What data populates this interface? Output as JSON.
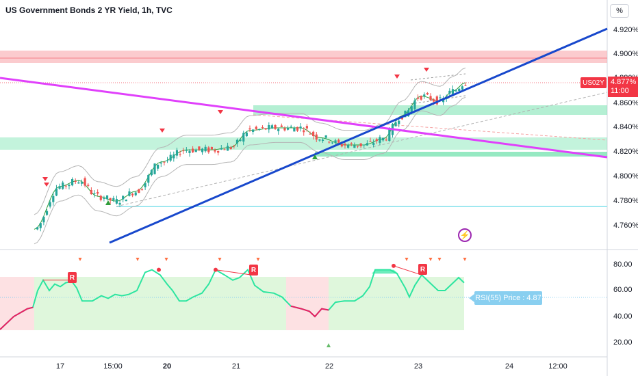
{
  "header": {
    "title": "US Government Bonds 2 YR Yield, 1h, TVC",
    "scale_button": "%"
  },
  "price_axis": {
    "labels": [
      "4.920%",
      "4.900%",
      "4.880%",
      "4.860%",
      "4.840%",
      "4.820%",
      "4.800%",
      "4.780%",
      "4.760%"
    ],
    "symbol_tag": "US02Y",
    "last_price": "4.877%",
    "countdown": "11:00"
  },
  "rsi_axis": {
    "labels": [
      "80.00",
      "60.00",
      "40.00",
      "20.00"
    ],
    "tag": "RSI(55) Price : 4.87",
    "badge": "R"
  },
  "time_axis": [
    {
      "label": "17",
      "bold": false
    },
    {
      "label": "15:00",
      "bold": false
    },
    {
      "label": "20",
      "bold": true
    },
    {
      "label": "21",
      "bold": false
    },
    {
      "label": "22",
      "bold": false
    },
    {
      "label": "23",
      "bold": false
    },
    {
      "label": "24",
      "bold": false
    },
    {
      "label": "12:00",
      "bold": false
    }
  ],
  "icons": {
    "alert": "alert-bolt-icon"
  },
  "colors": {
    "up_candle": "#26a69a",
    "down_candle": "#ef5350",
    "trendline_blue": "#1848cc",
    "trendline_magenta": "#e040fb",
    "resistance_zone": "#f7a1a6",
    "support_zone": "#69e0a8",
    "rsi_line": "#2ce5a0",
    "rsi_low": "#e91e63",
    "tag_red": "#f23645",
    "rsi_tag": "#89cff0"
  }
}
